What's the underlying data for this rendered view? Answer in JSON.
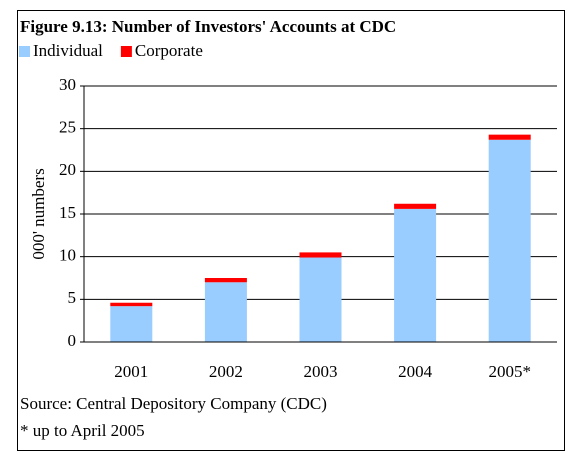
{
  "chart_data": {
    "type": "stacked_bar",
    "title": "Figure 9.13: Number of Investors' Accounts at CDC",
    "y_label": "000' numbers",
    "categories": [
      "2001",
      "2002",
      "2003",
      "2004",
      "2005*"
    ],
    "series": [
      {
        "name": "Individual",
        "color": "#99ccff",
        "values": [
          4.2,
          7.0,
          9.9,
          15.6,
          23.7
        ]
      },
      {
        "name": "Corporate",
        "color": "#ff0000",
        "values": [
          0.4,
          0.5,
          0.6,
          0.6,
          0.6
        ]
      }
    ],
    "ylim": [
      0,
      30
    ],
    "yticks": [
      0,
      5,
      10,
      15,
      20,
      25,
      30
    ],
    "grid": true,
    "source": "Source: Central Depository Company (CDC)",
    "note": "* up to April 2005"
  }
}
